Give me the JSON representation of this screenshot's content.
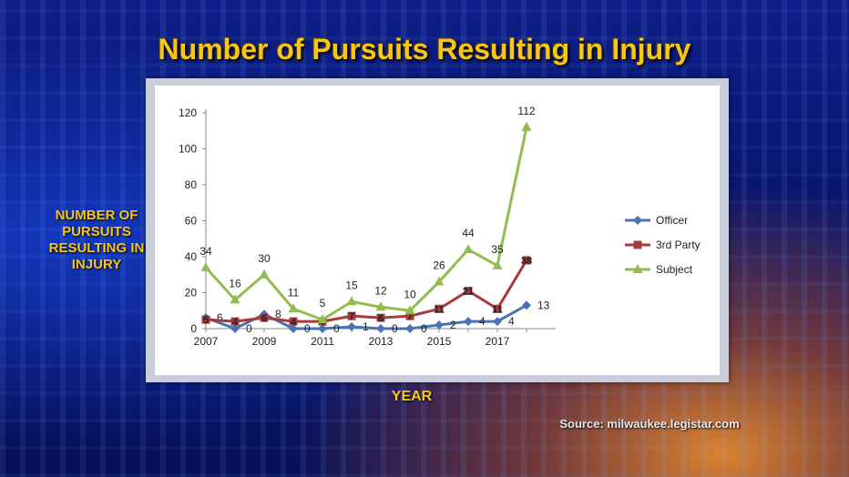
{
  "slide": {
    "title": "Number of Pursuits Resulting in Injury",
    "ylabel": "NUMBER OF PURSUITS RESULTING IN INJURY",
    "xlabel": "YEAR",
    "source": "Source: milwaukee.legistar.com"
  },
  "chart_data": {
    "type": "line",
    "title": "Number of Pursuits Resulting in Injury",
    "xlabel": "YEAR",
    "ylabel": "NUMBER OF PURSUITS RESULTING IN INJURY",
    "x": [
      2007,
      2008,
      2009,
      2010,
      2011,
      2012,
      2013,
      2014,
      2015,
      2016,
      2017,
      2018
    ],
    "x_tick_labels": [
      "2007",
      "2009",
      "2011",
      "2013",
      "2015",
      "2017"
    ],
    "y_ticks": [
      0,
      20,
      40,
      60,
      80,
      100,
      120
    ],
    "ylim": [
      0,
      120
    ],
    "grid": false,
    "legend_position": "right",
    "series": [
      {
        "name": "Officer",
        "color": "#4a73b6",
        "marker": "diamond",
        "values": [
          6,
          0,
          8,
          0,
          0,
          1,
          0,
          0,
          2,
          4,
          4,
          13
        ]
      },
      {
        "name": "3rd Party",
        "color": "#a93a3c",
        "marker": "square",
        "values": [
          5,
          4,
          6,
          4,
          4,
          7,
          6,
          7,
          11,
          21,
          11,
          38
        ]
      },
      {
        "name": "Subject",
        "color": "#92bc4e",
        "marker": "triangle",
        "values": [
          34,
          16,
          30,
          11,
          5,
          15,
          12,
          10,
          26,
          44,
          35,
          112
        ]
      }
    ]
  }
}
